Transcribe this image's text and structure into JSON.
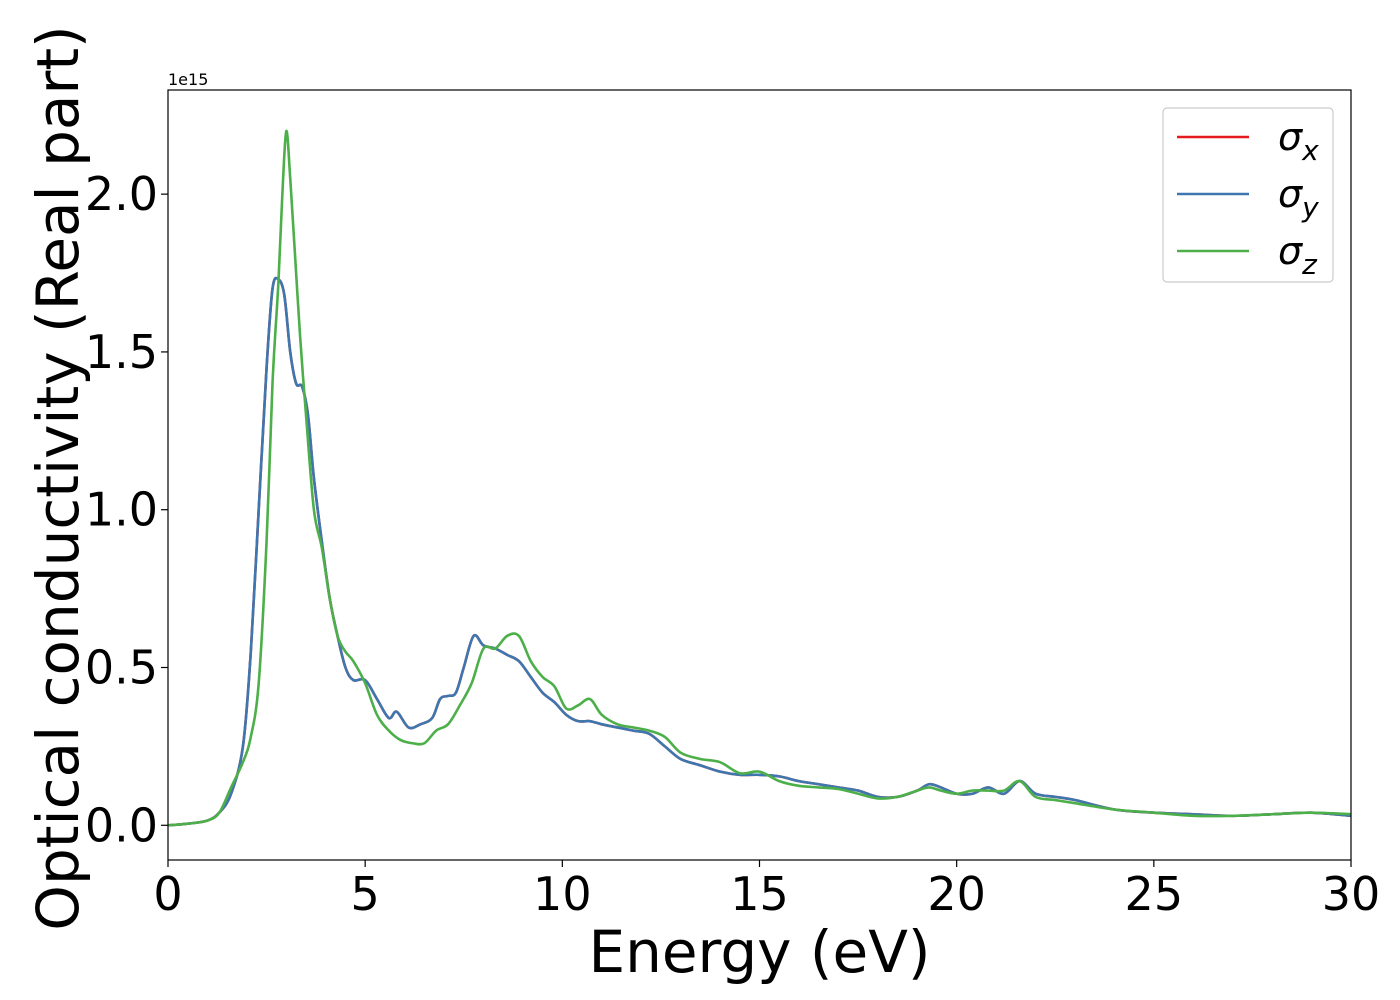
{
  "chart_data": {
    "type": "line",
    "title": "",
    "xlabel": "Energy (eV)",
    "ylabel": "Optical conductivity (Real part)",
    "y_offset_text": "1e15",
    "y_multiplier": 1000000000000000.0,
    "xlim": [
      0,
      30
    ],
    "ylim": [
      -0.11,
      2.33
    ],
    "x_ticks": [
      0,
      5,
      10,
      15,
      20,
      25,
      30
    ],
    "x_tick_labels": [
      "0",
      "5",
      "10",
      "15",
      "20",
      "25",
      "30"
    ],
    "y_ticks": [
      0.0,
      0.5,
      1.0,
      1.5,
      2.0
    ],
    "y_tick_labels": [
      "0.0",
      "0.5",
      "1.0",
      "1.5",
      "2.0"
    ],
    "grid": false,
    "legend_position": "top-right",
    "series": [
      {
        "name": "σx",
        "legend_base": "σ",
        "legend_sub": "x",
        "color": "#e41a1c",
        "x": [
          0,
          0.5,
          1.0,
          1.3,
          1.6,
          1.9,
          2.1,
          2.3,
          2.5,
          2.65,
          2.8,
          2.95,
          3.1,
          3.25,
          3.4,
          3.55,
          3.7,
          3.9,
          4.1,
          4.3,
          4.5,
          4.7,
          5.0,
          5.3,
          5.6,
          5.8,
          6.1,
          6.4,
          6.7,
          6.9,
          7.1,
          7.3,
          7.5,
          7.75,
          8.0,
          8.3,
          8.6,
          8.9,
          9.2,
          9.5,
          9.8,
          10.1,
          10.4,
          10.7,
          11.0,
          11.4,
          11.8,
          12.2,
          12.6,
          13.0,
          13.5,
          14.0,
          14.5,
          15.0,
          15.5,
          16.0,
          16.5,
          17.0,
          17.5,
          18.0,
          18.5,
          19.0,
          19.3,
          19.6,
          20.0,
          20.4,
          20.8,
          21.2,
          21.6,
          22.0,
          22.5,
          23.0,
          24.0,
          25.0,
          26.0,
          27.0,
          28.0,
          29.0,
          30.0
        ],
        "values": [
          0.0,
          0.005,
          0.015,
          0.04,
          0.1,
          0.25,
          0.55,
          1.0,
          1.45,
          1.7,
          1.73,
          1.68,
          1.5,
          1.4,
          1.39,
          1.3,
          1.1,
          0.9,
          0.72,
          0.6,
          0.5,
          0.46,
          0.46,
          0.4,
          0.34,
          0.36,
          0.31,
          0.32,
          0.34,
          0.4,
          0.41,
          0.42,
          0.5,
          0.6,
          0.57,
          0.56,
          0.54,
          0.52,
          0.47,
          0.42,
          0.39,
          0.35,
          0.33,
          0.33,
          0.32,
          0.31,
          0.3,
          0.29,
          0.25,
          0.21,
          0.19,
          0.17,
          0.16,
          0.16,
          0.155,
          0.14,
          0.13,
          0.12,
          0.11,
          0.09,
          0.09,
          0.11,
          0.13,
          0.12,
          0.1,
          0.1,
          0.12,
          0.1,
          0.14,
          0.1,
          0.09,
          0.08,
          0.05,
          0.04,
          0.035,
          0.03,
          0.035,
          0.04,
          0.03
        ]
      },
      {
        "name": "σy",
        "legend_base": "σ",
        "legend_sub": "y",
        "color": "#3d77af",
        "x": [
          0,
          0.5,
          1.0,
          1.3,
          1.6,
          1.9,
          2.1,
          2.3,
          2.5,
          2.65,
          2.8,
          2.95,
          3.1,
          3.25,
          3.4,
          3.55,
          3.7,
          3.9,
          4.1,
          4.3,
          4.5,
          4.7,
          5.0,
          5.3,
          5.6,
          5.8,
          6.1,
          6.4,
          6.7,
          6.9,
          7.1,
          7.3,
          7.5,
          7.75,
          8.0,
          8.3,
          8.6,
          8.9,
          9.2,
          9.5,
          9.8,
          10.1,
          10.4,
          10.7,
          11.0,
          11.4,
          11.8,
          12.2,
          12.6,
          13.0,
          13.5,
          14.0,
          14.5,
          15.0,
          15.5,
          16.0,
          16.5,
          17.0,
          17.5,
          18.0,
          18.5,
          19.0,
          19.3,
          19.6,
          20.0,
          20.4,
          20.8,
          21.2,
          21.6,
          22.0,
          22.5,
          23.0,
          24.0,
          25.0,
          26.0,
          27.0,
          28.0,
          29.0,
          30.0
        ],
        "values": [
          0.0,
          0.005,
          0.015,
          0.04,
          0.1,
          0.25,
          0.55,
          1.0,
          1.45,
          1.7,
          1.73,
          1.68,
          1.5,
          1.4,
          1.39,
          1.3,
          1.1,
          0.9,
          0.72,
          0.6,
          0.5,
          0.46,
          0.46,
          0.4,
          0.34,
          0.36,
          0.31,
          0.32,
          0.34,
          0.4,
          0.41,
          0.42,
          0.5,
          0.6,
          0.57,
          0.56,
          0.54,
          0.52,
          0.47,
          0.42,
          0.39,
          0.35,
          0.33,
          0.33,
          0.32,
          0.31,
          0.3,
          0.29,
          0.25,
          0.21,
          0.19,
          0.17,
          0.16,
          0.16,
          0.155,
          0.14,
          0.13,
          0.12,
          0.11,
          0.09,
          0.09,
          0.11,
          0.13,
          0.12,
          0.1,
          0.1,
          0.12,
          0.1,
          0.14,
          0.1,
          0.09,
          0.08,
          0.05,
          0.04,
          0.035,
          0.03,
          0.035,
          0.04,
          0.03
        ]
      },
      {
        "name": "σz",
        "legend_base": "σ",
        "legend_sub": "z",
        "color": "#4daf4a",
        "x": [
          0,
          0.5,
          1.0,
          1.3,
          1.6,
          1.9,
          2.1,
          2.3,
          2.5,
          2.65,
          2.8,
          2.9,
          3.0,
          3.1,
          3.2,
          3.35,
          3.5,
          3.7,
          3.9,
          4.1,
          4.3,
          4.5,
          4.7,
          5.0,
          5.3,
          5.6,
          5.9,
          6.2,
          6.5,
          6.8,
          7.1,
          7.4,
          7.7,
          8.0,
          8.3,
          8.6,
          8.9,
          9.2,
          9.5,
          9.8,
          10.1,
          10.4,
          10.7,
          11.0,
          11.4,
          11.8,
          12.2,
          12.6,
          13.0,
          13.5,
          14.0,
          14.5,
          15.0,
          15.5,
          16.0,
          16.5,
          17.0,
          17.5,
          18.0,
          18.5,
          19.0,
          19.3,
          19.6,
          20.0,
          20.4,
          20.8,
          21.2,
          21.6,
          22.0,
          22.5,
          23.0,
          24.0,
          25.0,
          26.0,
          27.0,
          28.0,
          29.0,
          30.0
        ],
        "values": [
          0.0,
          0.005,
          0.015,
          0.04,
          0.12,
          0.2,
          0.28,
          0.45,
          0.9,
          1.4,
          1.72,
          2.0,
          2.2,
          2.05,
          1.85,
          1.55,
          1.3,
          1.0,
          0.88,
          0.72,
          0.6,
          0.55,
          0.52,
          0.45,
          0.35,
          0.3,
          0.27,
          0.26,
          0.26,
          0.3,
          0.32,
          0.38,
          0.45,
          0.56,
          0.56,
          0.6,
          0.6,
          0.52,
          0.47,
          0.44,
          0.37,
          0.38,
          0.4,
          0.35,
          0.32,
          0.31,
          0.3,
          0.28,
          0.23,
          0.21,
          0.2,
          0.165,
          0.17,
          0.14,
          0.125,
          0.12,
          0.115,
          0.1,
          0.085,
          0.09,
          0.11,
          0.12,
          0.11,
          0.1,
          0.11,
          0.11,
          0.11,
          0.14,
          0.09,
          0.08,
          0.07,
          0.05,
          0.04,
          0.03,
          0.03,
          0.035,
          0.04,
          0.035
        ]
      }
    ]
  }
}
